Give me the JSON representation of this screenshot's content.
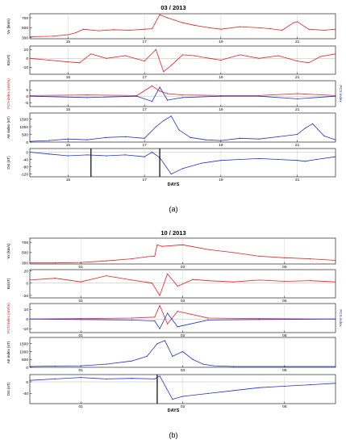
{
  "figure_a": {
    "title": "03 / 2013",
    "xlabel": "DAYS",
    "caption": "(a)",
    "panels": [
      {
        "ylabel": "Vx (km/s)",
        "ylabel_right": ""
      },
      {
        "ylabel": "Bz(nT)",
        "ylabel_right": ""
      },
      {
        "ylabel": "PCN index (mV/m)",
        "ylabel_right": "PCS index"
      },
      {
        "ylabel": "AE index (nT)",
        "ylabel_right": ""
      },
      {
        "ylabel": "Dst (nT)",
        "ylabel_right": ""
      }
    ]
  },
  "figure_b": {
    "title": "10 / 2013",
    "xlabel": "DAYS",
    "caption": "(b)",
    "panels": [
      {
        "ylabel": "Vx (km/s)",
        "ylabel_right": ""
      },
      {
        "ylabel": "Bz(nT)",
        "ylabel_right": ""
      },
      {
        "ylabel": "PCN index (mV/m)",
        "ylabel_right": "PCS index"
      },
      {
        "ylabel": "AE index (nT)",
        "ylabel_right": ""
      },
      {
        "ylabel": "Dst (nT)",
        "ylabel_right": ""
      }
    ]
  },
  "colors": {
    "red": "#ee1c1c",
    "blue": "#1f2fe0",
    "axis": "#000000",
    "grid": "#c8c8c8"
  },
  "chart_data": [
    {
      "type": "line",
      "title": "03 / 2013",
      "xlabel": "DAYS",
      "xticks": [
        "15",
        "17",
        "19",
        "21"
      ],
      "xlim": [
        14,
        22
      ],
      "panels": [
        {
          "ylabel": "Vx (km/s)",
          "yticks": [
            300,
            500,
            700
          ],
          "ylim": [
            280,
            780
          ],
          "series": [
            {
              "color": "red",
              "x": [
                14,
                14.6,
                15.0,
                15.2,
                15.4,
                15.8,
                16.2,
                16.6,
                17.0,
                17.2,
                17.4,
                17.6,
                17.8,
                18.0,
                18.3,
                18.7,
                19.0,
                19.5,
                20.0,
                20.3,
                20.6,
                20.9,
                21.0,
                21.3,
                21.7,
                22
              ],
              "y": [
                320,
                330,
                360,
                400,
                470,
                440,
                460,
                450,
                470,
                480,
                760,
                700,
                650,
                600,
                550,
                500,
                470,
                520,
                500,
                480,
                450,
                600,
                620,
                470,
                450,
                470
              ]
            }
          ]
        },
        {
          "ylabel": "Bz(nT)",
          "yticks": [
            -10,
            0,
            10
          ],
          "ylim": [
            -18,
            14
          ],
          "series": [
            {
              "color": "red",
              "x": [
                14,
                14.5,
                15.0,
                15.3,
                15.6,
                16.0,
                16.5,
                17.0,
                17.3,
                17.5,
                17.7,
                18.0,
                18.3,
                18.7,
                19.0,
                19.5,
                20.0,
                20.5,
                21.0,
                21.3,
                21.6,
                22
              ],
              "y": [
                0,
                -2,
                -4,
                -5,
                5,
                0,
                3,
                -3,
                10,
                -15,
                -8,
                4,
                3,
                0,
                -2,
                4,
                0,
                3,
                -3,
                -5,
                2,
                5
              ]
            }
          ]
        },
        {
          "ylabel": "PCN index (mV/m)",
          "ylabel_right": "PCS index",
          "yticks": [
            -5,
            0,
            5
          ],
          "ylim": [
            -8,
            12
          ],
          "series": [
            {
              "color": "red",
              "x": [
                14,
                15.5,
                16.8,
                17.2,
                17.4,
                17.6,
                18.0,
                19.0,
                20.0,
                21.0,
                22
              ],
              "y": [
                0.5,
                1,
                0.5,
                8,
                4,
                2,
                1,
                0.5,
                0.5,
                2,
                0.5
              ]
            },
            {
              "color": "blue",
              "x": [
                14,
                15.5,
                16.8,
                17.2,
                17.4,
                17.6,
                18.0,
                19.0,
                20.0,
                21.0,
                22
              ],
              "y": [
                0,
                -1,
                0,
                -4,
                7,
                -3,
                -1,
                0,
                0,
                -2,
                0
              ]
            }
          ]
        },
        {
          "ylabel": "AE index (nT)",
          "yticks": [
            0,
            500,
            1000,
            1500
          ],
          "ylim": [
            0,
            1900
          ],
          "series": [
            {
              "color": "blue",
              "x": [
                14,
                14.5,
                15.0,
                15.5,
                16.0,
                16.5,
                17.0,
                17.3,
                17.5,
                17.7,
                17.9,
                18.2,
                18.6,
                19.0,
                19.5,
                20.0,
                20.5,
                21.0,
                21.2,
                21.4,
                21.7,
                22
              ],
              "y": [
                50,
                100,
                200,
                150,
                300,
                350,
                250,
                1000,
                1400,
                1700,
                800,
                300,
                150,
                100,
                250,
                200,
                350,
                500,
                900,
                1200,
                400,
                150
              ]
            }
          ]
        },
        {
          "ylabel": "Dst (nT)",
          "yticks": [
            0,
            -40,
            -80,
            -120
          ],
          "ylim": [
            -135,
            20
          ],
          "series": [
            {
              "color": "blue",
              "x": [
                14,
                14.5,
                15.0,
                15.5,
                16.0,
                16.5,
                17.0,
                17.2,
                17.4,
                17.7,
                18.0,
                18.5,
                19.0,
                19.5,
                20.0,
                20.5,
                21.0,
                21.2,
                21.5,
                22
              ],
              "y": [
                0,
                -10,
                -20,
                -15,
                -20,
                -15,
                -25,
                0,
                -30,
                -120,
                -90,
                -60,
                -45,
                -40,
                -35,
                -40,
                -45,
                -50,
                -40,
                -25
              ]
            }
          ]
        }
      ]
    },
    {
      "type": "line",
      "title": "10 / 2013",
      "xlabel": "DAYS",
      "xticks": [
        "01",
        "03",
        "05"
      ],
      "xlim": [
        0,
        6
      ],
      "panels": [
        {
          "ylabel": "Vx (km/s)",
          "yticks": [
            300,
            500,
            700
          ],
          "ylim": [
            280,
            780
          ],
          "series": [
            {
              "color": "red",
              "x": [
                0,
                0.5,
                1.0,
                1.5,
                2.0,
                2.3,
                2.45,
                2.5,
                2.6,
                3.0,
                3.5,
                4.0,
                4.5,
                5.0,
                5.5,
                6
              ],
              "y": [
                300,
                300,
                310,
                340,
                380,
                420,
                430,
                650,
                620,
                650,
                560,
                500,
                430,
                400,
                380,
                350
              ]
            }
          ]
        },
        {
          "ylabel": "Bz(nT)",
          "yticks": [
            -20,
            0,
            20
          ],
          "ylim": [
            -24,
            22
          ],
          "series": [
            {
              "color": "red",
              "x": [
                0,
                0.5,
                1.0,
                1.5,
                2.0,
                2.4,
                2.55,
                2.7,
                2.9,
                3.2,
                3.5,
                4.0,
                4.5,
                5.0,
                5.5,
                6
              ],
              "y": [
                5,
                8,
                2,
                12,
                5,
                0,
                -20,
                15,
                -5,
                6,
                4,
                2,
                5,
                3,
                4,
                2
              ]
            }
          ]
        },
        {
          "ylabel": "PCN index (mV/m)",
          "ylabel_right": "PCS index",
          "yticks": [
            -10,
            0,
            10
          ],
          "ylim": [
            -14,
            16
          ],
          "series": [
            {
              "color": "red",
              "x": [
                0,
                1.0,
                2.0,
                2.45,
                2.55,
                2.7,
                2.9,
                3.5,
                4.5,
                6
              ],
              "y": [
                0,
                0.5,
                1,
                2,
                14,
                -5,
                8,
                1,
                0.5,
                0
              ]
            },
            {
              "color": "blue",
              "x": [
                0,
                1.0,
                2.0,
                2.45,
                2.55,
                2.7,
                2.9,
                3.5,
                4.5,
                6
              ],
              "y": [
                0,
                -0.5,
                -1,
                -2,
                -10,
                6,
                -8,
                -1,
                -0.5,
                0
              ]
            }
          ]
        },
        {
          "ylabel": "AE index (nT)",
          "yticks": [
            0,
            500,
            1000,
            1500
          ],
          "ylim": [
            0,
            1900
          ],
          "series": [
            {
              "color": "blue",
              "x": [
                0,
                0.5,
                1.0,
                1.5,
                2.0,
                2.3,
                2.5,
                2.65,
                2.8,
                3.0,
                3.2,
                3.4,
                3.6,
                4.0,
                5.0,
                6
              ],
              "y": [
                50,
                80,
                100,
                200,
                400,
                700,
                1500,
                1700,
                700,
                1000,
                500,
                200,
                100,
                50,
                50,
                50
              ]
            }
          ]
        },
        {
          "ylabel": "Dst (nT)",
          "yticks": [
            0,
            -40
          ],
          "ylim": [
            -75,
            25
          ],
          "series": [
            {
              "color": "blue",
              "x": [
                0,
                0.5,
                1.0,
                1.5,
                2.0,
                2.45,
                2.55,
                2.8,
                3.0,
                3.5,
                4.0,
                4.5,
                5.0,
                5.5,
                6
              ],
              "y": [
                5,
                10,
                15,
                10,
                12,
                10,
                20,
                -60,
                -50,
                -40,
                -30,
                -20,
                -15,
                -10,
                -5
              ]
            }
          ]
        }
      ]
    }
  ]
}
